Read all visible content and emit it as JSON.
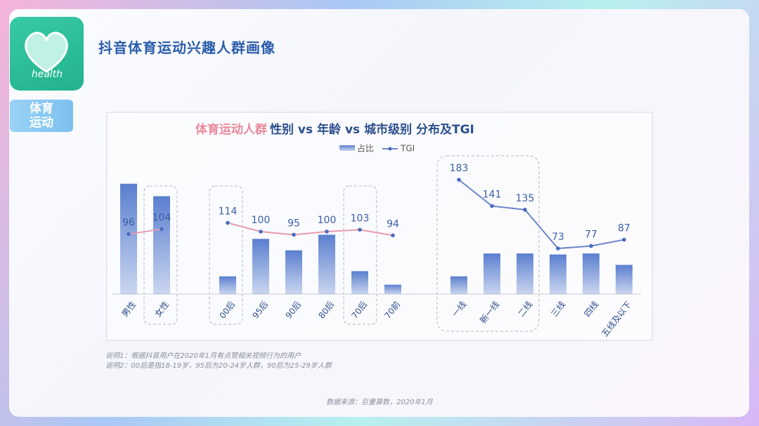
{
  "icon_label": "health",
  "tag": [
    "体育",
    "运动"
  ],
  "page_title": "抖音体育运动兴趣人群画像",
  "chart_data": {
    "type": "bar-line",
    "title_highlight": "体育运动人群",
    "title": "性别 vs 年龄 vs 城市级别 分布及TGI",
    "legend": [
      "占比",
      "TGI"
    ],
    "bar_color": "#5a7fcf",
    "ylim": [
      0,
      60
    ],
    "y2lim": [
      0,
      200
    ],
    "groups": [
      {
        "categories": [
          "男性",
          "女性"
        ],
        "shares": [
          53,
          47
        ],
        "tgi": [
          96,
          104
        ],
        "line_color": "#e59aae"
      },
      {
        "categories": [
          "00后",
          "95后",
          "90后",
          "80后",
          "70后",
          "70前"
        ],
        "shares": [
          8.5,
          26.5,
          21,
          28.5,
          11,
          4.5
        ],
        "tgi": [
          114,
          100,
          95,
          100,
          103,
          94
        ],
        "line_color": "#e59aae"
      },
      {
        "categories": [
          "一线",
          "新一线",
          "二线",
          "三线",
          "四线",
          "五线及以下"
        ],
        "shares": [
          8.5,
          19.5,
          19.5,
          19,
          19.5,
          14
        ],
        "tgi": [
          183,
          141,
          135,
          73,
          77,
          87
        ],
        "line_color": "#6d87c9"
      }
    ]
  },
  "notes": [
    "说明1：根据抖音用户在2020年1月有点赞相关视频行为的用户",
    "说明2：00后是指18-19岁，95后为20-24岁人群，90后为25-29岁人群"
  ],
  "source": "数据来源：巨量算数，2020年1月"
}
